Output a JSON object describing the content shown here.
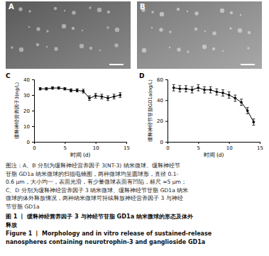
{
  "figure": {
    "panels": [
      {
        "label": "A"
      },
      {
        "label": "B"
      }
    ],
    "caption_lines": [
      "图注：A、B 分别为缓释神经营养因子 3(NT-3) 纳米微球、缓释神经节",
      "苷脂 GD1a 纳米微球的扫描电镜图，两种微球均呈圆球形，直径 0.1-",
      "0.6 μm，大小均一，表面光滑，有少量微球表面有凹陷，标尺 =5 μm；",
      "C、D 分别为缓释神经营养因子 3 纳米微球、缓释神经节苷脂 GD1a 纳米",
      "微球的体外释放情况，两种纳米微球可持续释放神经营养因子 3 与神经",
      "节苷脂 GD1a"
    ],
    "title_lines": [
      "图 1 丨 缓释神经营养因子 3 与神经节苷脂 GD1a 纳米微球的形态及体外",
      "释放"
    ],
    "english_title_lines": [
      "Figure 1  丨  Morphology and in vitro release of sustained-release",
      "nanospheres containing neurotrophin-3 and ganglioside GD1a"
    ]
  },
  "chart_data": [
    {
      "type": "line",
      "title": "C",
      "x_label": "时间 (d)",
      "y_label": "缓释神经营养因子3(ng/L)",
      "x": [
        1,
        2,
        3,
        4,
        5,
        6,
        7,
        8,
        9,
        10,
        11,
        12,
        13,
        14
      ],
      "values": [
        34,
        34,
        34.5,
        34.5,
        34,
        33,
        33,
        32.5,
        28,
        29.5,
        29,
        28,
        29,
        30
      ],
      "errors": [
        0.8,
        0.8,
        0.8,
        0.8,
        0.8,
        1,
        1,
        1.2,
        1.5,
        1.5,
        1.5,
        1.5,
        1.5,
        1.5
      ],
      "color": "#000000",
      "marker": "circle",
      "xlim": [
        0,
        15
      ],
      "xticks": [
        0,
        5,
        10,
        15
      ],
      "ylim": [
        0,
        40
      ],
      "yticks": [
        0,
        10,
        20,
        30,
        40
      ]
    },
    {
      "type": "line",
      "title": "D",
      "x_label": "时间 (d)",
      "y_label": "缓释神经节苷脂GD1a(ng/L)",
      "x": [
        1,
        2,
        3,
        4,
        5,
        6,
        7,
        8,
        9,
        10,
        11,
        12,
        13,
        14
      ],
      "values": [
        52,
        51,
        51,
        50,
        52,
        50,
        50,
        48,
        47,
        45,
        42,
        38,
        30,
        19
      ],
      "errors": [
        3,
        3,
        3,
        3,
        3,
        3,
        3,
        3,
        3,
        3,
        3,
        3,
        3,
        3
      ],
      "color": "#000000",
      "marker": "circle",
      "xlim": [
        0,
        15
      ],
      "xticks": [
        0,
        5,
        10,
        15
      ],
      "ylim": [
        0,
        60
      ],
      "yticks": [
        0,
        20,
        40,
        60
      ]
    }
  ]
}
